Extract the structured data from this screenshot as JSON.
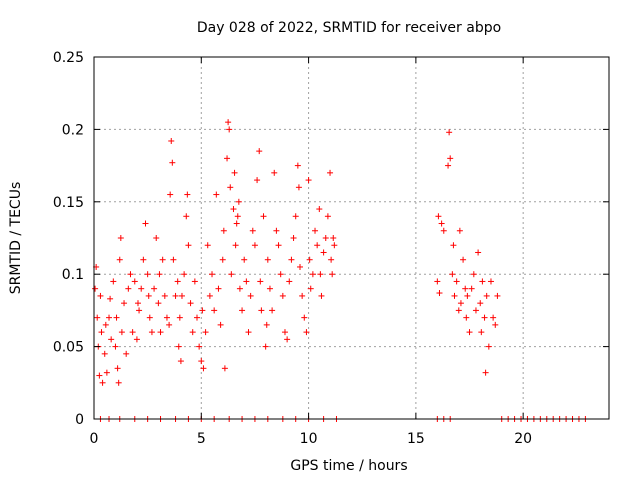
{
  "chart_data": {
    "type": "scatter",
    "title": "Day 028 of 2022, SRMTID for receiver abpo",
    "xlabel": "GPS time / hours",
    "ylabel": "SRMTID / TECUs",
    "xlim": [
      0,
      24
    ],
    "ylim": [
      0,
      0.25
    ],
    "xticks": [
      0,
      5,
      10,
      15,
      20
    ],
    "xtick_labels": [
      "0",
      "5",
      "10",
      "15",
      "20"
    ],
    "yticks": [
      0,
      0.05,
      0.1,
      0.15,
      0.2,
      0.25
    ],
    "ytick_labels": [
      "0",
      "0.05",
      "0.1",
      "0.15",
      "0.2",
      "0.25"
    ],
    "grid": true,
    "marker": "+",
    "color": "#ff0000",
    "series": [
      {
        "name": "SRMTID",
        "points": [
          [
            0.05,
            0.09
          ],
          [
            0.1,
            0.105
          ],
          [
            0.15,
            0.07
          ],
          [
            0.2,
            0.05
          ],
          [
            0.25,
            0.03
          ],
          [
            0.3,
            0.085
          ],
          [
            0.35,
            0.06
          ],
          [
            0.4,
            0.025
          ],
          [
            0.5,
            0.045
          ],
          [
            0.55,
            0.065
          ],
          [
            0.6,
            0.032
          ],
          [
            0.7,
            0.07
          ],
          [
            0.75,
            0.083
          ],
          [
            0.8,
            0.055
          ],
          [
            0.9,
            0.095
          ],
          [
            1.0,
            0.05
          ],
          [
            1.05,
            0.07
          ],
          [
            1.1,
            0.035
          ],
          [
            1.15,
            0.025
          ],
          [
            1.2,
            0.11
          ],
          [
            1.25,
            0.125
          ],
          [
            1.3,
            0.06
          ],
          [
            1.4,
            0.08
          ],
          [
            1.5,
            0.045
          ],
          [
            1.6,
            0.09
          ],
          [
            1.7,
            0.1
          ],
          [
            1.8,
            0.06
          ],
          [
            1.9,
            0.095
          ],
          [
            2.0,
            0.055
          ],
          [
            2.05,
            0.08
          ],
          [
            2.1,
            0.075
          ],
          [
            2.2,
            0.09
          ],
          [
            2.3,
            0.11
          ],
          [
            2.4,
            0.135
          ],
          [
            2.5,
            0.1
          ],
          [
            2.55,
            0.085
          ],
          [
            2.6,
            0.07
          ],
          [
            2.7,
            0.06
          ],
          [
            2.8,
            0.09
          ],
          [
            2.9,
            0.125
          ],
          [
            3.0,
            0.08
          ],
          [
            3.05,
            0.1
          ],
          [
            3.1,
            0.06
          ],
          [
            3.2,
            0.11
          ],
          [
            3.3,
            0.085
          ],
          [
            3.4,
            0.07
          ],
          [
            3.5,
            0.065
          ],
          [
            3.55,
            0.155
          ],
          [
            3.6,
            0.192
          ],
          [
            3.65,
            0.177
          ],
          [
            3.7,
            0.11
          ],
          [
            3.8,
            0.085
          ],
          [
            3.9,
            0.095
          ],
          [
            3.95,
            0.05
          ],
          [
            4.0,
            0.07
          ],
          [
            4.05,
            0.04
          ],
          [
            4.1,
            0.085
          ],
          [
            4.2,
            0.1
          ],
          [
            4.3,
            0.14
          ],
          [
            4.35,
            0.155
          ],
          [
            4.4,
            0.12
          ],
          [
            4.5,
            0.08
          ],
          [
            4.6,
            0.06
          ],
          [
            4.7,
            0.095
          ],
          [
            4.8,
            0.07
          ],
          [
            4.9,
            0.05
          ],
          [
            5.0,
            0.04
          ],
          [
            5.05,
            0.075
          ],
          [
            5.1,
            0.035
          ],
          [
            5.2,
            0.06
          ],
          [
            5.3,
            0.12
          ],
          [
            5.4,
            0.085
          ],
          [
            5.5,
            0.1
          ],
          [
            5.6,
            0.075
          ],
          [
            5.7,
            0.155
          ],
          [
            5.8,
            0.09
          ],
          [
            5.9,
            0.065
          ],
          [
            6.0,
            0.11
          ],
          [
            6.05,
            0.13
          ],
          [
            6.1,
            0.035
          ],
          [
            6.2,
            0.18
          ],
          [
            6.25,
            0.205
          ],
          [
            6.3,
            0.2
          ],
          [
            6.35,
            0.16
          ],
          [
            6.4,
            0.1
          ],
          [
            6.5,
            0.145
          ],
          [
            6.55,
            0.17
          ],
          [
            6.6,
            0.12
          ],
          [
            6.65,
            0.135
          ],
          [
            6.7,
            0.14
          ],
          [
            6.75,
            0.15
          ],
          [
            6.8,
            0.09
          ],
          [
            6.9,
            0.075
          ],
          [
            7.0,
            0.11
          ],
          [
            7.1,
            0.095
          ],
          [
            7.2,
            0.06
          ],
          [
            7.3,
            0.085
          ],
          [
            7.4,
            0.13
          ],
          [
            7.5,
            0.12
          ],
          [
            7.6,
            0.165
          ],
          [
            7.7,
            0.185
          ],
          [
            7.75,
            0.095
          ],
          [
            7.8,
            0.075
          ],
          [
            7.9,
            0.14
          ],
          [
            8.0,
            0.05
          ],
          [
            8.05,
            0.065
          ],
          [
            8.1,
            0.11
          ],
          [
            8.2,
            0.09
          ],
          [
            8.3,
            0.075
          ],
          [
            8.4,
            0.17
          ],
          [
            8.5,
            0.13
          ],
          [
            8.6,
            0.12
          ],
          [
            8.7,
            0.1
          ],
          [
            8.8,
            0.085
          ],
          [
            8.9,
            0.06
          ],
          [
            9.0,
            0.055
          ],
          [
            9.1,
            0.095
          ],
          [
            9.2,
            0.11
          ],
          [
            9.3,
            0.125
          ],
          [
            9.4,
            0.14
          ],
          [
            9.5,
            0.175
          ],
          [
            9.55,
            0.16
          ],
          [
            9.6,
            0.105
          ],
          [
            9.7,
            0.085
          ],
          [
            9.8,
            0.07
          ],
          [
            9.9,
            0.06
          ],
          [
            10.0,
            0.165
          ],
          [
            10.05,
            0.11
          ],
          [
            10.1,
            0.09
          ],
          [
            10.2,
            0.1
          ],
          [
            10.3,
            0.13
          ],
          [
            10.4,
            0.12
          ],
          [
            10.5,
            0.145
          ],
          [
            10.55,
            0.1
          ],
          [
            10.6,
            0.085
          ],
          [
            10.7,
            0.115
          ],
          [
            10.8,
            0.125
          ],
          [
            10.9,
            0.14
          ],
          [
            11.0,
            0.17
          ],
          [
            11.05,
            0.11
          ],
          [
            11.1,
            0.1
          ],
          [
            11.15,
            0.125
          ],
          [
            11.2,
            0.12
          ],
          [
            16.0,
            0.095
          ],
          [
            16.05,
            0.14
          ],
          [
            16.1,
            0.087
          ],
          [
            16.2,
            0.135
          ],
          [
            16.3,
            0.13
          ],
          [
            16.5,
            0.175
          ],
          [
            16.55,
            0.198
          ],
          [
            16.6,
            0.18
          ],
          [
            16.7,
            0.1
          ],
          [
            16.75,
            0.12
          ],
          [
            16.8,
            0.085
          ],
          [
            16.9,
            0.095
          ],
          [
            17.0,
            0.075
          ],
          [
            17.05,
            0.13
          ],
          [
            17.1,
            0.08
          ],
          [
            17.2,
            0.11
          ],
          [
            17.3,
            0.09
          ],
          [
            17.35,
            0.07
          ],
          [
            17.4,
            0.085
          ],
          [
            17.5,
            0.06
          ],
          [
            17.6,
            0.09
          ],
          [
            17.7,
            0.1
          ],
          [
            17.8,
            0.075
          ],
          [
            17.9,
            0.115
          ],
          [
            18.0,
            0.08
          ],
          [
            18.05,
            0.06
          ],
          [
            18.1,
            0.095
          ],
          [
            18.2,
            0.07
          ],
          [
            18.25,
            0.032
          ],
          [
            18.3,
            0.085
          ],
          [
            18.4,
            0.05
          ],
          [
            18.5,
            0.095
          ],
          [
            18.6,
            0.07
          ],
          [
            18.7,
            0.065
          ],
          [
            18.8,
            0.085
          ],
          [
            0.3,
            0
          ],
          [
            0.7,
            0
          ],
          [
            1.2,
            0
          ],
          [
            1.9,
            0
          ],
          [
            2.5,
            0
          ],
          [
            3.1,
            0
          ],
          [
            3.8,
            0
          ],
          [
            4.4,
            0
          ],
          [
            5.0,
            0
          ],
          [
            5.6,
            0
          ],
          [
            6.3,
            0
          ],
          [
            6.9,
            0
          ],
          [
            7.5,
            0
          ],
          [
            8.1,
            0
          ],
          [
            8.8,
            0
          ],
          [
            9.4,
            0
          ],
          [
            10.0,
            0
          ],
          [
            10.7,
            0
          ],
          [
            11.3,
            0
          ],
          [
            16.0,
            0
          ],
          [
            16.3,
            0
          ],
          [
            16.6,
            0
          ],
          [
            19.0,
            0
          ],
          [
            19.3,
            0
          ],
          [
            19.6,
            0
          ],
          [
            19.9,
            0
          ],
          [
            20.2,
            0
          ],
          [
            20.5,
            0
          ],
          [
            20.8,
            0
          ],
          [
            21.1,
            0
          ],
          [
            21.4,
            0
          ],
          [
            21.7,
            0
          ],
          [
            22.0,
            0
          ],
          [
            22.3,
            0
          ],
          [
            22.6,
            0
          ],
          [
            22.9,
            0
          ]
        ]
      }
    ]
  }
}
